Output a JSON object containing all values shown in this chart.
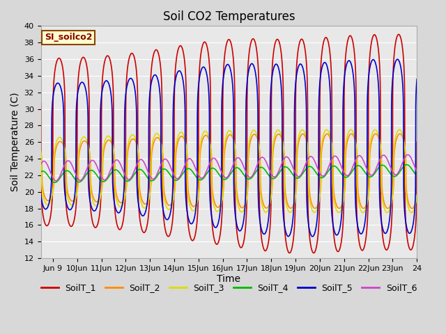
{
  "title": "Soil CO2 Temperatures",
  "xlabel": "Time",
  "ylabel": "Soil Temperature (C)",
  "ylim": [
    12,
    40
  ],
  "xlim_start": 8.5,
  "xlim_end": 24.0,
  "series_colors": [
    "#cc0000",
    "#ff8c00",
    "#dddd00",
    "#00bb00",
    "#0000cc",
    "#cc44cc"
  ],
  "series_names": [
    "SoilT_1",
    "SoilT_2",
    "SoilT_3",
    "SoilT_4",
    "SoilT_5",
    "SoilT_6"
  ],
  "legend_label": "SI_soilco2",
  "legend_bg": "#ffffcc",
  "legend_edge": "#884400",
  "bg_color": "#e8e8e8",
  "grid_color": "#ffffff",
  "title_fontsize": 12,
  "axis_fontsize": 10,
  "tick_fontsize": 8,
  "legend_fontsize": 9,
  "figwidth": 6.4,
  "figheight": 4.8,
  "dpi": 100
}
